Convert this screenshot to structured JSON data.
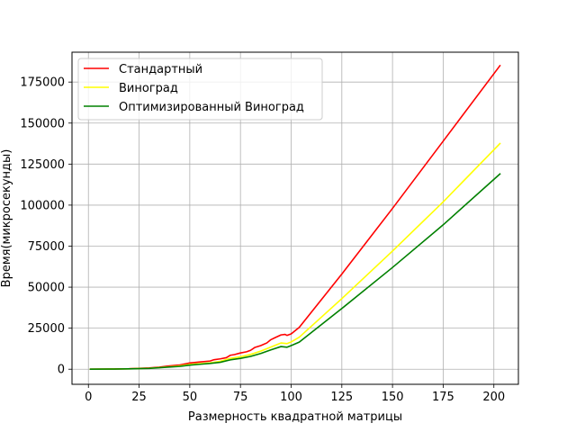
{
  "chart_data": {
    "type": "line",
    "title": "",
    "xlabel": "Размерность квадратной матрицы",
    "ylabel": "Время(микросекунды)",
    "xlim": [
      -8.1,
      212.1
    ],
    "ylim": [
      -9200,
      193200
    ],
    "xticks": [
      0,
      25,
      50,
      75,
      100,
      125,
      150,
      175,
      200
    ],
    "yticks": [
      0,
      25000,
      50000,
      75000,
      100000,
      125000,
      150000,
      175000
    ],
    "xtick_labels": [
      "0",
      "25",
      "50",
      "75",
      "100",
      "125",
      "150",
      "175",
      "200"
    ],
    "ytick_labels": [
      "0",
      "25000",
      "50000",
      "75000",
      "100000",
      "125000",
      "150000",
      "175000"
    ],
    "grid": true,
    "legend_position": "top-left",
    "series": [
      {
        "name": "Стандартный",
        "color": "#ff0000",
        "x": [
          1,
          10,
          20,
          30,
          35,
          40,
          45,
          50,
          55,
          60,
          62,
          65,
          68,
          70,
          72,
          75,
          78,
          80,
          82,
          85,
          88,
          90,
          92,
          95,
          97,
          98,
          100,
          102,
          104,
          125,
          150,
          175,
          203
        ],
        "y": [
          0,
          100,
          300,
          800,
          1300,
          2000,
          2600,
          3800,
          4400,
          5000,
          5800,
          6300,
          7000,
          8500,
          8900,
          9900,
          10600,
          11500,
          13200,
          14400,
          16000,
          18000,
          19200,
          20900,
          21200,
          20600,
          21500,
          23500,
          25500,
          58000,
          98000,
          139000,
          185000
        ]
      },
      {
        "name": "Виноград",
        "color": "#ffff00",
        "x": [
          1,
          10,
          20,
          30,
          35,
          40,
          45,
          50,
          55,
          60,
          65,
          70,
          75,
          80,
          85,
          90,
          95,
          98,
          100,
          104,
          125,
          150,
          175,
          203
        ],
        "y": [
          0,
          80,
          250,
          600,
          1000,
          1500,
          2000,
          2900,
          3400,
          3900,
          4800,
          6600,
          7600,
          9000,
          11000,
          13500,
          16000,
          15600,
          16600,
          19500,
          43000,
          72000,
          102000,
          137500
        ]
      },
      {
        "name": "Оптимизированный Виноград",
        "color": "#008000",
        "x": [
          1,
          10,
          20,
          30,
          35,
          40,
          45,
          50,
          55,
          60,
          65,
          70,
          75,
          80,
          85,
          90,
          95,
          98,
          100,
          104,
          125,
          150,
          175,
          203
        ],
        "y": [
          0,
          70,
          200,
          500,
          900,
          1300,
          1700,
          2500,
          3000,
          3500,
          4200,
          5700,
          6600,
          7800,
          9600,
          11800,
          13800,
          13400,
          14400,
          16500,
          37000,
          62000,
          88000,
          119000
        ]
      }
    ]
  }
}
